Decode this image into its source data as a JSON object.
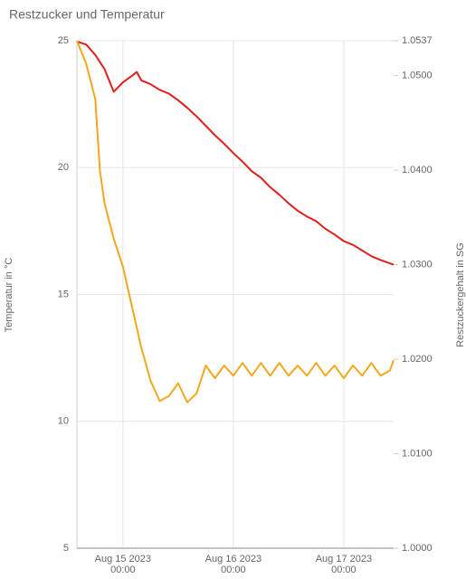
{
  "chart_data": {
    "type": "line",
    "title": "Restzucker und Temperatur",
    "ylabel": "Temperatur in °C",
    "y2label": "Restzuckergehalt in SG",
    "xlim": [
      "2023-08-14T14:00",
      "2023-08-17T10:50"
    ],
    "xticks": [
      {
        "value": "2023-08-15T00:00",
        "label": "Aug 15 2023 00:00"
      },
      {
        "value": "2023-08-16T00:00",
        "label": "Aug 16 2023 00:00"
      },
      {
        "value": "2023-08-17T00:00",
        "label": "Aug 17 2023 00:00"
      }
    ],
    "ylim": [
      5,
      25
    ],
    "yticks": [
      5,
      10,
      15,
      20,
      25
    ],
    "y2lim": [
      1.0,
      1.0537
    ],
    "y2ticks": [
      {
        "value": 1.0,
        "label": "1.0000"
      },
      {
        "value": 1.01,
        "label": "1.0100"
      },
      {
        "value": 1.02,
        "label": "1.0200"
      },
      {
        "value": 1.03,
        "label": "1.0300"
      },
      {
        "value": 1.04,
        "label": "1.0400"
      },
      {
        "value": 1.05,
        "label": "1.0500"
      },
      {
        "value": 1.0537,
        "label": "1.0537"
      }
    ],
    "grid": true,
    "series": [
      {
        "name": "Restzucker",
        "color": "#e0201c",
        "axis": "y2",
        "x": [
          "2023-08-14T14:00",
          "2023-08-14T16:00",
          "2023-08-14T18:00",
          "2023-08-14T20:00",
          "2023-08-14T22:00",
          "2023-08-14T23:00",
          "2023-08-15T00:00",
          "2023-08-15T02:00",
          "2023-08-15T03:00",
          "2023-08-15T04:00",
          "2023-08-15T06:00",
          "2023-08-15T08:00",
          "2023-08-15T10:00",
          "2023-08-15T12:00",
          "2023-08-15T14:00",
          "2023-08-15T16:00",
          "2023-08-15T18:00",
          "2023-08-15T20:00",
          "2023-08-15T22:00",
          "2023-08-16T00:00",
          "2023-08-16T02:00",
          "2023-08-16T04:00",
          "2023-08-16T06:00",
          "2023-08-16T08:00",
          "2023-08-16T10:00",
          "2023-08-16T12:00",
          "2023-08-16T14:00",
          "2023-08-16T16:00",
          "2023-08-16T18:00",
          "2023-08-16T20:00",
          "2023-08-16T22:00",
          "2023-08-17T00:00",
          "2023-08-17T02:00",
          "2023-08-17T04:00",
          "2023-08-17T06:00",
          "2023-08-17T08:00",
          "2023-08-17T10:50"
        ],
        "values": [
          1.0536,
          1.0533,
          1.0522,
          1.0507,
          1.0483,
          1.0488,
          1.0493,
          1.05,
          1.0504,
          1.0495,
          1.0491,
          1.0485,
          1.0481,
          1.0474,
          1.0466,
          1.0457,
          1.0447,
          1.0437,
          1.0428,
          1.0418,
          1.0409,
          1.0399,
          1.0392,
          1.0382,
          1.0374,
          1.0365,
          1.0357,
          1.0351,
          1.0346,
          1.0338,
          1.0332,
          1.0325,
          1.0321,
          1.0315,
          1.0309,
          1.0305,
          1.03
        ]
      },
      {
        "name": "Temperatur",
        "color": "#f2a81d",
        "axis": "y",
        "x": [
          "2023-08-14T14:00",
          "2023-08-14T16:00",
          "2023-08-14T18:00",
          "2023-08-14T19:00",
          "2023-08-14T20:00",
          "2023-08-14T22:00",
          "2023-08-15T00:00",
          "2023-08-15T02:00",
          "2023-08-15T04:00",
          "2023-08-15T06:00",
          "2023-08-15T08:00",
          "2023-08-15T10:00",
          "2023-08-15T12:00",
          "2023-08-15T14:00",
          "2023-08-15T16:00",
          "2023-08-15T18:00",
          "2023-08-15T20:00",
          "2023-08-15T22:00",
          "2023-08-16T00:00",
          "2023-08-16T02:00",
          "2023-08-16T04:00",
          "2023-08-16T06:00",
          "2023-08-16T08:00",
          "2023-08-16T10:00",
          "2023-08-16T12:00",
          "2023-08-16T14:00",
          "2023-08-16T16:00",
          "2023-08-16T18:00",
          "2023-08-16T20:00",
          "2023-08-16T22:00",
          "2023-08-17T00:00",
          "2023-08-17T02:00",
          "2023-08-17T04:00",
          "2023-08-17T06:00",
          "2023-08-17T08:00",
          "2023-08-17T10:00",
          "2023-08-17T10:50"
        ],
        "values": [
          25,
          24.1,
          22.7,
          19.9,
          18.6,
          17.2,
          16.1,
          14.5,
          12.9,
          11.6,
          10.8,
          11,
          11.5,
          10.75,
          11.1,
          12.2,
          11.7,
          12.2,
          11.8,
          12.3,
          11.8,
          12.3,
          11.8,
          12.3,
          11.8,
          12.2,
          11.8,
          12.3,
          11.8,
          12.2,
          11.7,
          12.2,
          11.8,
          12.3,
          11.8,
          12,
          12.4
        ]
      }
    ]
  }
}
